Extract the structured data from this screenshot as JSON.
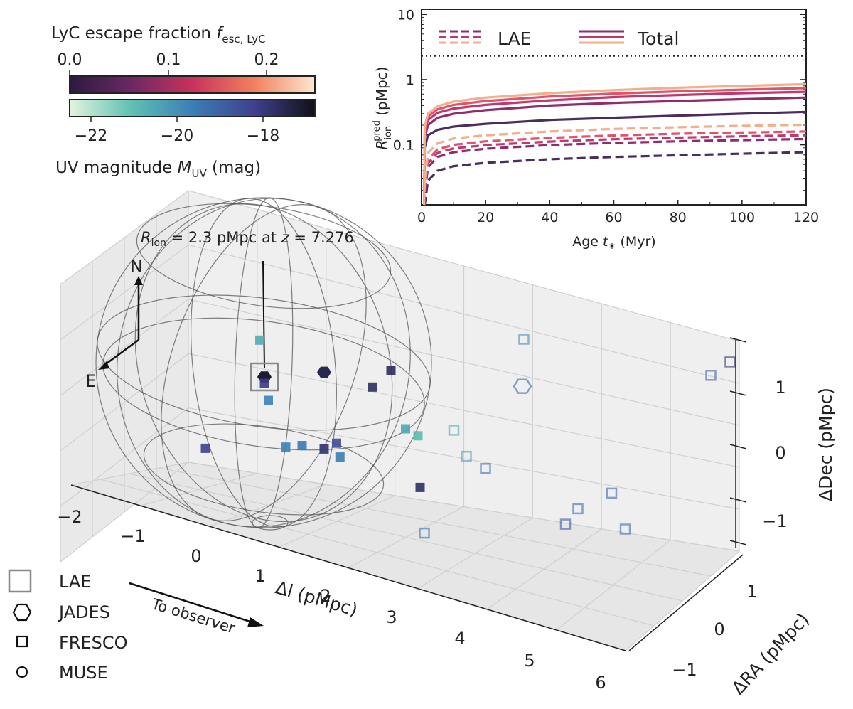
{
  "colorbars": {
    "fesc": {
      "title_main": "LyC escape fraction ",
      "title_sym": "f",
      "title_sub": "esc, LyC",
      "ticks": [
        "0.0",
        "0.1",
        "0.2"
      ],
      "tick_values": [
        0.0,
        0.1,
        0.2
      ],
      "range": [
        0.0,
        0.25
      ]
    },
    "muv": {
      "title_main": "UV magnitude ",
      "title_sym": "M",
      "title_sub": "UV",
      "title_unit": " (mag)",
      "ticks": [
        "−22",
        "−20",
        "−18"
      ],
      "tick_values": [
        -22,
        -20,
        -18
      ],
      "range": [
        -22.6,
        -16.9
      ]
    }
  },
  "inset": {
    "xlabel": "Age t∗ (Myr)",
    "ylabel_main": "R",
    "ylabel_sub": "ion",
    "ylabel_sup": "pred",
    "ylabel_unit": " (pMpc)",
    "xticks": [
      "0",
      "20",
      "40",
      "60",
      "80",
      "100",
      "120"
    ],
    "yticks": [
      "0.1",
      "1",
      "10"
    ],
    "legend": {
      "lae": "LAE",
      "total": "Total"
    }
  },
  "main3d": {
    "annotation": {
      "r": "R",
      "sub": "ion",
      "text": " = 2.3 pMpc at ",
      "z": "z",
      "ztext": " = 7.276"
    },
    "compass": {
      "north": "N",
      "east": "E"
    },
    "arrow_label": "To observer",
    "dl_label": "Δl (pMpc)",
    "ra_label": "ΔRA (pMpc)",
    "dec_label": "ΔDec (pMpc)",
    "dl_ticks": [
      "−2",
      "−1",
      "0",
      "1",
      "2",
      "3",
      "4",
      "5",
      "6"
    ],
    "ra_ticks": [
      "−1",
      "0",
      "1"
    ],
    "dec_ticks": [
      "−1",
      "0",
      "1"
    ]
  },
  "legend": {
    "lae": "LAE",
    "jades": "JADES",
    "fresco": "FRESCO",
    "muse": "MUSE"
  },
  "chart_data": [
    {
      "type": "line",
      "title": "",
      "xlabel": "Age t* (Myr)",
      "ylabel": "R_ion^pred (pMpc)",
      "xlim": [
        0,
        120
      ],
      "ylim": [
        0.012,
        12
      ],
      "yscale": "log",
      "reference_line": {
        "y": 2.3,
        "style": "dotted"
      },
      "series": [
        {
          "name": "Total, f_esc=0.02",
          "group": "Total",
          "color": "#4b2c5e",
          "x": [
            1,
            2,
            5,
            10,
            20,
            40,
            60,
            80,
            100,
            120
          ],
          "values": [
            0.09,
            0.14,
            0.17,
            0.19,
            0.21,
            0.24,
            0.26,
            0.28,
            0.3,
            0.32
          ]
        },
        {
          "name": "Total, f_esc=0.08",
          "group": "Total",
          "color": "#8e2d6c",
          "x": [
            1,
            2,
            5,
            10,
            20,
            40,
            60,
            80,
            100,
            120
          ],
          "values": [
            0.13,
            0.2,
            0.26,
            0.3,
            0.34,
            0.4,
            0.44,
            0.47,
            0.5,
            0.53
          ]
        },
        {
          "name": "Total, f_esc=0.13",
          "group": "Total",
          "color": "#c1386f",
          "x": [
            1,
            2,
            5,
            10,
            20,
            40,
            60,
            80,
            100,
            120
          ],
          "values": [
            0.15,
            0.24,
            0.31,
            0.36,
            0.41,
            0.48,
            0.54,
            0.58,
            0.62,
            0.65
          ]
        },
        {
          "name": "Total, f_esc=0.18",
          "group": "Total",
          "color": "#e0546b",
          "x": [
            1,
            2,
            5,
            10,
            20,
            40,
            60,
            80,
            100,
            120
          ],
          "values": [
            0.17,
            0.27,
            0.35,
            0.41,
            0.47,
            0.55,
            0.61,
            0.66,
            0.7,
            0.74
          ]
        },
        {
          "name": "Total, f_esc=0.25",
          "group": "Total",
          "color": "#f5ad8c",
          "x": [
            1,
            2,
            5,
            10,
            20,
            40,
            60,
            80,
            100,
            120
          ],
          "values": [
            0.19,
            0.3,
            0.39,
            0.46,
            0.53,
            0.62,
            0.69,
            0.75,
            0.8,
            0.85
          ]
        },
        {
          "name": "LAE, f_esc=0.02",
          "group": "LAE",
          "color": "#4b2c5e",
          "x": [
            1,
            2,
            5,
            10,
            20,
            40,
            60,
            80,
            100,
            120
          ],
          "values": [
            0.012,
            0.028,
            0.04,
            0.047,
            0.053,
            0.06,
            0.065,
            0.069,
            0.073,
            0.077
          ]
        },
        {
          "name": "LAE, f_esc=0.08",
          "group": "LAE",
          "color": "#8e2d6c",
          "x": [
            1,
            2,
            5,
            10,
            20,
            40,
            60,
            80,
            100,
            120
          ],
          "values": [
            0.018,
            0.045,
            0.065,
            0.077,
            0.087,
            0.099,
            0.107,
            0.113,
            0.118,
            0.123
          ]
        },
        {
          "name": "LAE, f_esc=0.13",
          "group": "LAE",
          "color": "#c1386f",
          "x": [
            1,
            2,
            5,
            10,
            20,
            40,
            60,
            80,
            100,
            120
          ],
          "values": [
            0.021,
            0.052,
            0.075,
            0.088,
            0.099,
            0.112,
            0.122,
            0.129,
            0.135,
            0.14
          ]
        },
        {
          "name": "LAE, f_esc=0.18",
          "group": "LAE",
          "color": "#e0546b",
          "x": [
            1,
            2,
            5,
            10,
            20,
            40,
            60,
            80,
            100,
            120
          ],
          "values": [
            0.024,
            0.06,
            0.085,
            0.1,
            0.113,
            0.128,
            0.139,
            0.148,
            0.154,
            0.16
          ]
        },
        {
          "name": "LAE, f_esc=0.25",
          "group": "LAE",
          "color": "#f5ad8c",
          "x": [
            1,
            2,
            5,
            10,
            20,
            40,
            60,
            80,
            100,
            120
          ],
          "values": [
            0.029,
            0.075,
            0.105,
            0.125,
            0.14,
            0.16,
            0.175,
            0.186,
            0.195,
            0.203
          ]
        }
      ]
    },
    {
      "type": "scatter",
      "title": "",
      "xlabel": "Δl (pMpc)",
      "ylabel": "ΔRA (pMpc)",
      "zlabel": "ΔDec (pMpc)",
      "xlim": [
        -2,
        6
      ],
      "ylim": [
        -1.5,
        1.5
      ],
      "zlim": [
        -1.5,
        1.5
      ],
      "sphere": {
        "radius_pMpc": 2.3,
        "z": 7.276
      },
      "series": [
        {
          "name": "LAE",
          "marker": "square-open-large",
          "points": [
            {
              "dl": 0.0,
              "ra": 0.0,
              "dec": 0.0
            }
          ]
        },
        {
          "name": "JADES",
          "marker": "hexagon",
          "points": [
            {
              "dl": 0.0,
              "ra": 0.0,
              "dec": 0.0,
              "muv": -17.2
            },
            {
              "dl": 0.8,
              "ra": -0.1,
              "dec": 0.25,
              "muv": -17.6
            },
            {
              "dl": 3.4,
              "ra": -0.5,
              "dec": 0.55,
              "muv": -19.2,
              "outside": true
            }
          ]
        },
        {
          "name": "FRESCO",
          "marker": "square",
          "points": [
            {
              "dl": 0.1,
              "ra": 0.2,
              "dec": 0.75,
              "muv": -20.7
            },
            {
              "dl": 0.0,
              "ra": 0.0,
              "dec": -0.1,
              "muv": -18.2
            },
            {
              "dl": 0.1,
              "ra": 0.05,
              "dec": -0.3,
              "muv": -19.8
            },
            {
              "dl": -0.2,
              "ra": 0.8,
              "dec": -0.6,
              "muv": -18.3
            },
            {
              "dl": 0.4,
              "ra": 0.1,
              "dec": -0.9,
              "muv": -19.8
            },
            {
              "dl": 0.6,
              "ra": 0.05,
              "dec": -0.85,
              "muv": -19.6
            },
            {
              "dl": 0.8,
              "ra": -0.1,
              "dec": -0.95,
              "muv": -17.9
            },
            {
              "dl": 0.9,
              "ra": -0.2,
              "dec": -0.9,
              "muv": -18.6
            },
            {
              "dl": 0.95,
              "ra": -0.2,
              "dec": -1.1,
              "muv": -19.7
            },
            {
              "dl": 1.1,
              "ra": -0.6,
              "dec": -0.25,
              "muv": -17.8
            },
            {
              "dl": 1.2,
              "ra": -0.8,
              "dec": -0.1,
              "muv": -17.7
            },
            {
              "dl": 1.5,
              "ra": -0.7,
              "dec": -0.85,
              "muv": -20.6
            },
            {
              "dl": 1.6,
              "ra": -0.8,
              "dec": -1.0,
              "muv": -21.0
            },
            {
              "dl": 1.8,
              "ra": -0.6,
              "dec": -1.6,
              "muv": -17.8
            },
            {
              "dl": 2.3,
              "ra": -0.6,
              "dec": -0.55,
              "muv": -20.6,
              "outside": true
            },
            {
              "dl": 2.4,
              "ra": -0.7,
              "dec": -1.0,
              "muv": -20.4,
              "outside": true
            },
            {
              "dl": 2.2,
              "ra": -0.2,
              "dec": -1.9,
              "muv": -19.4,
              "outside": true
            },
            {
              "dl": 2.6,
              "ra": -0.8,
              "dec": -1.2,
              "muv": -19.3,
              "outside": true
            },
            {
              "dl": 3.0,
              "ra": -1.0,
              "dec": 0.8,
              "muv": -20.0,
              "outside": true
            },
            {
              "dl": 3.7,
              "ra": -0.9,
              "dec": -1.8,
              "muv": -18.9,
              "outside": true
            },
            {
              "dl": 3.8,
              "ra": -1.0,
              "dec": -1.6,
              "muv": -19.3,
              "outside": true
            },
            {
              "dl": 4.3,
              "ra": -1.0,
              "dec": -1.2,
              "muv": -19.2,
              "outside": true
            },
            {
              "dl": 4.5,
              "ra": -1.0,
              "dec": -1.7,
              "muv": -19.4,
              "outside": true
            },
            {
              "dl": 5.6,
              "ra": -1.2,
              "dec": 0.9,
              "muv": -19.1,
              "outside": true
            },
            {
              "dl": 5.8,
              "ra": -1.3,
              "dec": 1.1,
              "muv": -18.0,
              "outside": true
            }
          ]
        },
        {
          "name": "MUSE",
          "marker": "circle",
          "points": []
        }
      ]
    }
  ]
}
